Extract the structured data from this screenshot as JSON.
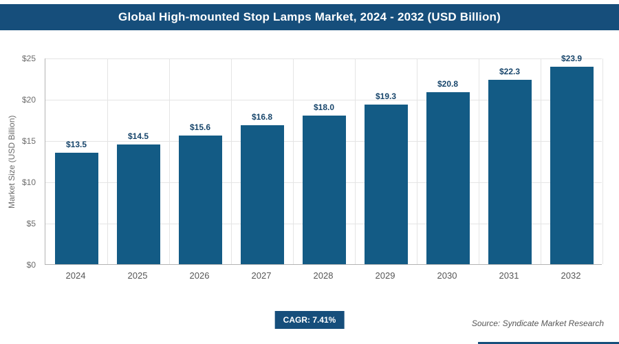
{
  "chart_data": {
    "type": "bar",
    "title": "Global High-mounted Stop Lamps Market, 2024 - 2032 (USD Billion)",
    "categories": [
      "2024",
      "2025",
      "2026",
      "2027",
      "2028",
      "2029",
      "2030",
      "2031",
      "2032"
    ],
    "values": [
      13.5,
      14.5,
      15.6,
      16.8,
      18.0,
      19.3,
      20.8,
      22.3,
      23.9
    ],
    "value_labels": [
      "$13.5",
      "$14.5",
      "$15.6",
      "$16.8",
      "$18.0",
      "$19.3",
      "$20.8",
      "$22.3",
      "$23.9"
    ],
    "xlabel": "",
    "ylabel": "Market Size (USD Billion)",
    "ylim": [
      0,
      25
    ],
    "ytick_step": 5,
    "ytick_labels": [
      "$0",
      "$5",
      "$10",
      "$15",
      "$20",
      "$25"
    ],
    "grid": true,
    "legend": "none",
    "bar_color": "#135b85"
  },
  "footer": {
    "cagr": "CAGR: 7.41%",
    "source": "Source: Syndicate Market Research"
  },
  "colors": {
    "accent": "#164e7b",
    "bar": "#135b85",
    "value_label": "#17456b",
    "gridline": "#e4e4e4"
  }
}
